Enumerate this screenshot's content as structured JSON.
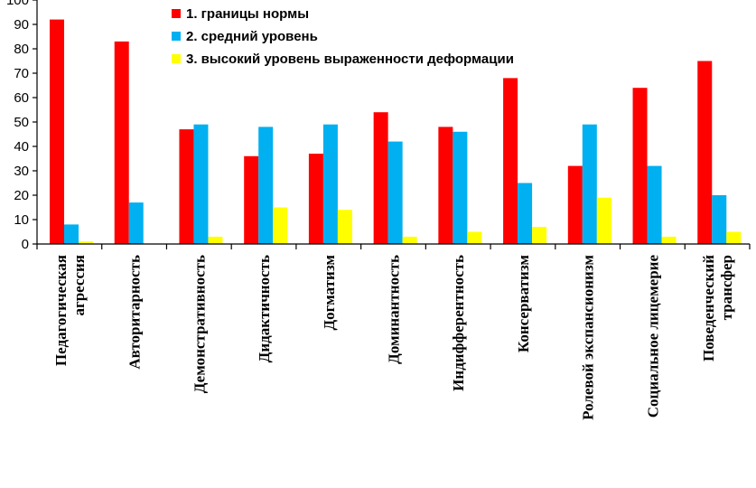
{
  "chart_data": {
    "type": "bar",
    "title": "",
    "xlabel": "",
    "ylabel": "",
    "ylim": [
      0,
      100
    ],
    "yticks": [
      0,
      10,
      20,
      30,
      40,
      50,
      60,
      70,
      80,
      90,
      100
    ],
    "grid": false,
    "legend_position": "top",
    "categories": [
      [
        "Педагогическая",
        "агрессия"
      ],
      [
        "Авторитарность"
      ],
      [
        "Демонстративность"
      ],
      [
        "Дидактичность"
      ],
      [
        "Догматизм"
      ],
      [
        "Доминантность"
      ],
      [
        "Индифферентность"
      ],
      [
        "Консерватизм"
      ],
      [
        "Ролевой экспансионизм"
      ],
      [
        "Социальное лицемерие"
      ],
      [
        "Поведенческий",
        "трансфер"
      ]
    ],
    "series": [
      {
        "name": "1. границы нормы",
        "color": "#ff0000",
        "values": [
          92,
          83,
          47,
          36,
          37,
          54,
          48,
          68,
          32,
          64,
          75
        ]
      },
      {
        "name": "2. средний уровень",
        "color": "#00b0f0",
        "values": [
          8,
          17,
          49,
          48,
          49,
          42,
          46,
          25,
          49,
          32,
          20
        ]
      },
      {
        "name": "3. высокий уровень выраженности деформации",
        "color": "#ffff00",
        "values": [
          1,
          0,
          3,
          15,
          14,
          3,
          5,
          7,
          19,
          3,
          5
        ]
      }
    ]
  }
}
